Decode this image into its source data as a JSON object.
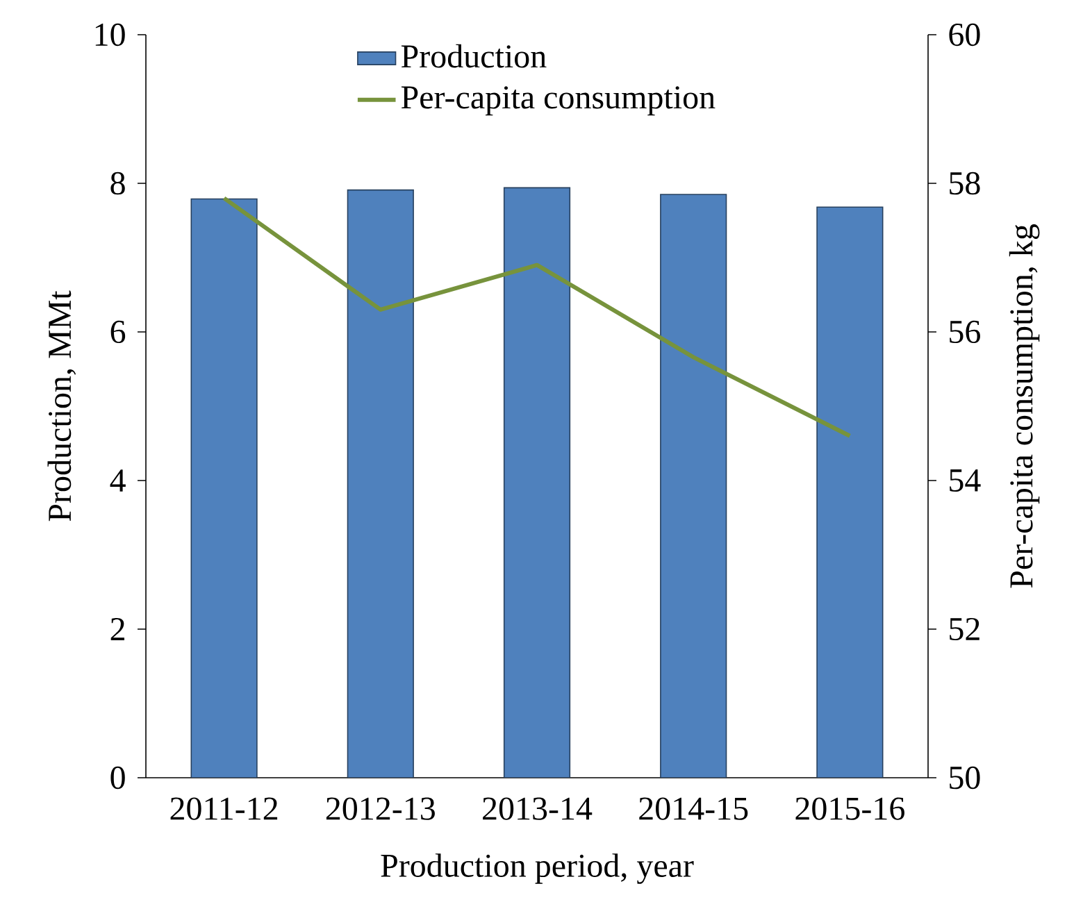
{
  "chart_data": {
    "type": "bar",
    "xlabel": "Production period, year",
    "ylabel": "Production, MMt",
    "y2label": "Per-capita consumption, kg",
    "categories": [
      "2011-12",
      "2012-13",
      "2013-14",
      "2014-15",
      "2015-16"
    ],
    "series": [
      {
        "name": "Production",
        "color": "#4f81bd",
        "values": [
          7.79,
          7.91,
          7.94,
          7.85,
          7.68
        ]
      },
      {
        "name": "Per-capita consumption",
        "type": "line",
        "axis": "y2",
        "color": "#77933c",
        "values": [
          57.8,
          56.3,
          56.9,
          55.66,
          54.6
        ]
      }
    ],
    "ylim": [
      0,
      10
    ],
    "yticks": [
      0,
      2,
      4,
      6,
      8,
      10
    ],
    "y2lim": [
      50,
      60
    ],
    "y2ticks": [
      50,
      52,
      54,
      56,
      58,
      60
    ],
    "legend": "top"
  }
}
